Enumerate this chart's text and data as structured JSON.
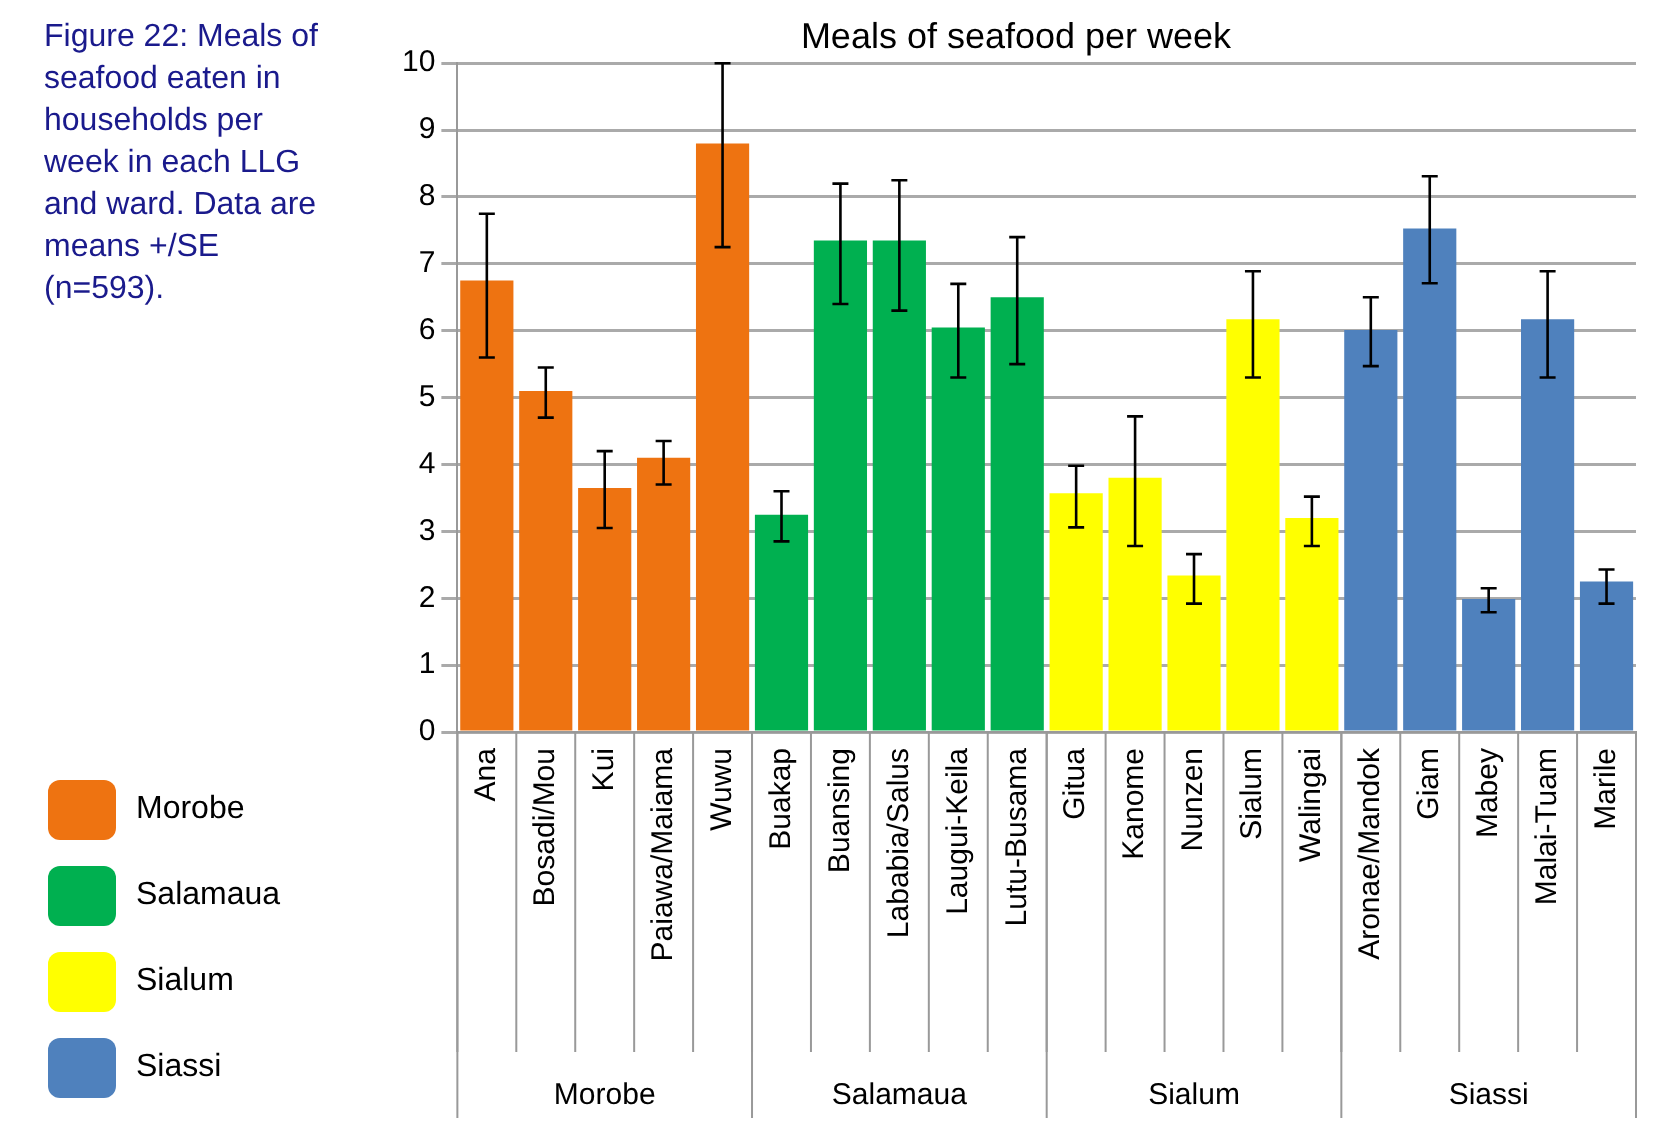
{
  "chart_data": {
    "type": "bar",
    "title": "Meals of seafood per week",
    "categories": [
      "Ana",
      "Bosadi/Mou",
      "Kui",
      "Paiawa/Maiama",
      "Wuwu",
      "Buakap",
      "Buansing",
      "Lababia/Salus",
      "Laugui-Keila",
      "Lutu-Busama",
      "Gitua",
      "Kanome",
      "Nunzen",
      "Sialum",
      "Walingai",
      "Aronae/Mandok",
      "Giam",
      "Mabey",
      "Malai-Tuam",
      "Marile"
    ],
    "series": [
      {
        "name": "Morobe",
        "color": "#ee7311",
        "values": [
          6.75,
          5.1,
          3.65,
          4.1,
          8.8,
          null,
          null,
          null,
          null,
          null,
          null,
          null,
          null,
          null,
          null,
          null,
          null,
          null,
          null,
          null
        ],
        "errors": [
          [
            5.6,
            7.75
          ],
          [
            4.7,
            5.45
          ],
          [
            3.05,
            4.2
          ],
          [
            3.7,
            4.35
          ],
          [
            7.25,
            10
          ],
          null,
          null,
          null,
          null,
          null,
          null,
          null,
          null,
          null,
          null,
          null,
          null,
          null,
          null,
          null
        ]
      },
      {
        "name": "Salamaua",
        "color": "#00b050",
        "values": [
          null,
          null,
          null,
          null,
          null,
          3.25,
          7.35,
          7.35,
          6.05,
          6.5,
          null,
          null,
          null,
          null,
          null,
          null,
          null,
          null,
          null,
          null
        ],
        "errors": [
          null,
          null,
          null,
          null,
          null,
          [
            2.85,
            3.6
          ],
          [
            6.4,
            8.2
          ],
          [
            6.3,
            8.25
          ],
          [
            5.3,
            6.7
          ],
          [
            5.5,
            7.4
          ],
          null,
          null,
          null,
          null,
          null,
          null,
          null,
          null,
          null,
          null
        ]
      },
      {
        "name": "Sialum",
        "color": "#ffff00",
        "values": [
          null,
          null,
          null,
          null,
          null,
          null,
          null,
          null,
          null,
          null,
          3.57,
          3.8,
          2.34,
          6.17,
          3.2,
          null,
          null,
          null,
          null,
          null
        ],
        "errors": [
          null,
          null,
          null,
          null,
          null,
          null,
          null,
          null,
          null,
          null,
          [
            3.06,
            3.98
          ],
          [
            2.78,
            4.72
          ],
          [
            1.92,
            2.66
          ],
          [
            5.3,
            6.89
          ],
          [
            2.78,
            3.52
          ],
          null,
          null,
          null,
          null,
          null
        ]
      },
      {
        "name": "Siassi",
        "color": "#4f81bd",
        "values": [
          null,
          null,
          null,
          null,
          null,
          null,
          null,
          null,
          null,
          null,
          null,
          null,
          null,
          null,
          null,
          6.01,
          7.53,
          1.99,
          6.17,
          2.25
        ],
        "errors": [
          null,
          null,
          null,
          null,
          null,
          null,
          null,
          null,
          null,
          null,
          null,
          null,
          null,
          null,
          null,
          [
            5.47,
            6.5
          ],
          [
            6.71,
            8.31
          ],
          [
            1.79,
            2.15
          ],
          [
            5.3,
            6.89
          ],
          [
            1.92,
            2.43
          ]
        ]
      }
    ],
    "ylim": [
      0,
      10
    ],
    "yticks": [
      0,
      1,
      2,
      3,
      4,
      5,
      6,
      7,
      8,
      9,
      10
    ],
    "grid": "y",
    "legend": "left",
    "annotations": [
      "Figure 22: Meals of seafood eaten in households per week in each LLG and ward. Data are means +/SE (n=593)."
    ]
  }
}
